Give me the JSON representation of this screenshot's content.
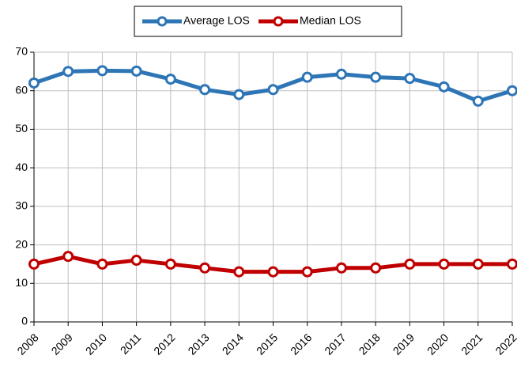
{
  "chart_data": {
    "type": "line",
    "categories": [
      "2008",
      "2009",
      "2010",
      "2011",
      "2012",
      "2013",
      "2014",
      "2015",
      "2016",
      "2017",
      "2018",
      "2019",
      "2020",
      "2021",
      "2022"
    ],
    "series": [
      {
        "name": "Average LOS",
        "color": "#2e75b6",
        "values": [
          62,
          65,
          65.2,
          65.1,
          63,
          60.3,
          59,
          60.3,
          63.5,
          64.3,
          63.5,
          63.2,
          61,
          57.3,
          60
        ]
      },
      {
        "name": "Median LOS",
        "color": "#c00000",
        "values": [
          15,
          17,
          15,
          16,
          15,
          14,
          13,
          13,
          13,
          14,
          14,
          15,
          15,
          15,
          15
        ]
      }
    ],
    "ylim": [
      0,
      70
    ],
    "yticks": [
      0,
      10,
      20,
      30,
      40,
      50,
      60,
      70
    ],
    "grid": true,
    "legend": "top"
  }
}
